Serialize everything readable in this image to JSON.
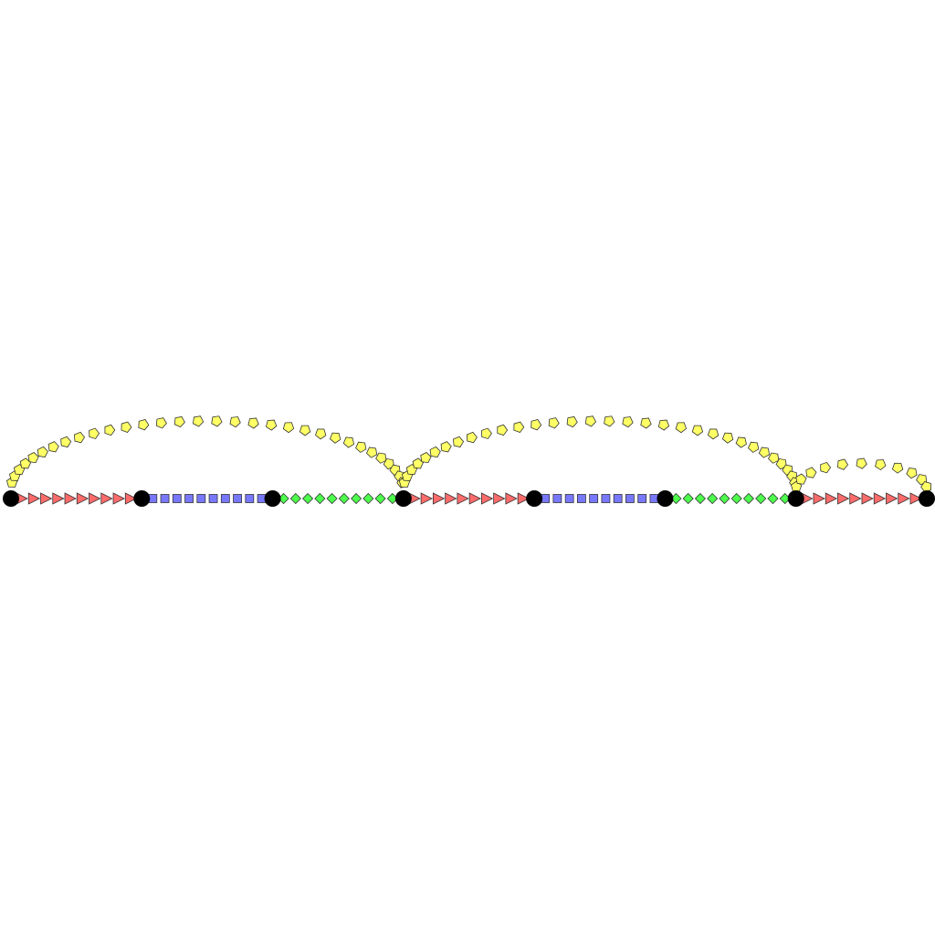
{
  "diagram": {
    "node_count": 8,
    "segments": [
      {
        "from": 0,
        "to": 1,
        "marker": "triangle",
        "color": "#ff6b6b",
        "count": 10
      },
      {
        "from": 1,
        "to": 2,
        "marker": "square",
        "color": "#7878ff",
        "count": 10
      },
      {
        "from": 2,
        "to": 3,
        "marker": "diamond",
        "color": "#4cff4c",
        "count": 10
      },
      {
        "from": 3,
        "to": 4,
        "marker": "triangle",
        "color": "#ff6b6b",
        "count": 10
      },
      {
        "from": 4,
        "to": 5,
        "marker": "square",
        "color": "#7878ff",
        "count": 10
      },
      {
        "from": 5,
        "to": 6,
        "marker": "diamond",
        "color": "#4cff4c",
        "count": 10
      },
      {
        "from": 6,
        "to": 7,
        "marker": "triangle",
        "color": "#ff6b6b",
        "count": 10
      }
    ],
    "arcs": [
      {
        "from": 0,
        "to": 3,
        "marker": "pentagon",
        "color": "#ffff66",
        "count": 32
      },
      {
        "from": 3,
        "to": 6,
        "marker": "pentagon",
        "color": "#ffff66",
        "count": 32
      },
      {
        "from": 6,
        "to": 7,
        "marker": "pentagon",
        "color": "#ffff66",
        "count": 11
      }
    ],
    "node_color": "#000000",
    "marker_stroke": "#333333"
  }
}
